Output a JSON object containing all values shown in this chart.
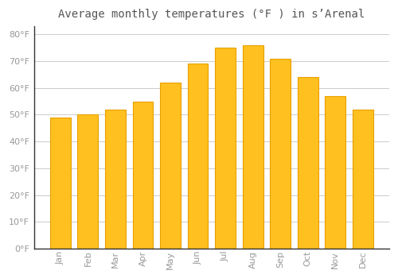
{
  "title": "Average monthly temperatures (°F ) in s’Arenal",
  "months": [
    "Jan",
    "Feb",
    "Mar",
    "Apr",
    "May",
    "Jun",
    "Jul",
    "Aug",
    "Sep",
    "Oct",
    "Nov",
    "Dec"
  ],
  "values": [
    49,
    50,
    52,
    55,
    62,
    69,
    75,
    76,
    71,
    64,
    57,
    52
  ],
  "bar_color": "#FFC020",
  "bar_edge_color": "#E8A000",
  "background_color": "#ffffff",
  "grid_color": "#cccccc",
  "yticks": [
    0,
    10,
    20,
    30,
    40,
    50,
    60,
    70,
    80
  ],
  "ylim": [
    0,
    83
  ],
  "tick_label_color": "#999999",
  "title_color": "#555555",
  "title_fontsize": 10,
  "axis_fontsize": 8,
  "spine_color": "#333333"
}
